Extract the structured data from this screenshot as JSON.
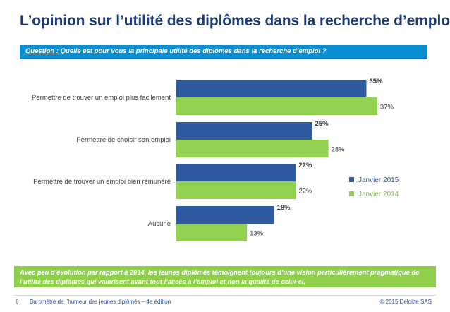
{
  "title": "L’opinion sur l’utilité des diplômes dans la recherche d’emploi",
  "question": {
    "prefix": "Question :",
    "text": " Quelle est pour vous la principale utilité des diplômes dans la recherche d’emploi ?"
  },
  "chart_data": {
    "type": "bar",
    "orientation": "horizontal",
    "categories": [
      "Permettre de trouver un emploi plus facilement",
      "Permettre de choisir son emploi",
      "Permettre de trouver un emploi bien rémunéré",
      "Aucune"
    ],
    "series": [
      {
        "name": "Janvier 2015",
        "values": [
          35,
          25,
          22,
          18
        ],
        "labels": [
          "35%",
          "25%",
          "22%",
          "18%"
        ],
        "color": "#2f5aa0"
      },
      {
        "name": "Janvier 2014",
        "values": [
          37,
          28,
          22,
          13
        ],
        "labels": [
          "37%",
          "28%",
          "22%",
          "13%"
        ],
        "color": "#92d050"
      }
    ],
    "xlim": [
      0,
      40
    ],
    "grid": false,
    "legend_position": "right"
  },
  "conclusion": "Avec peu d’évolution par rapport à 2014, les jeunes diplômés témoignent toujours d’une vision particulièrement pragmatique de l’utilité des diplômes qui valorisent avant tout l’accès à l’emploi et non la qualité de celui-ci,",
  "footer": {
    "page_number": "8",
    "left": "Baromètre de l’humeur des jeunes diplômés – 4e édition",
    "right": "© 2015 Deloitte SAS"
  }
}
